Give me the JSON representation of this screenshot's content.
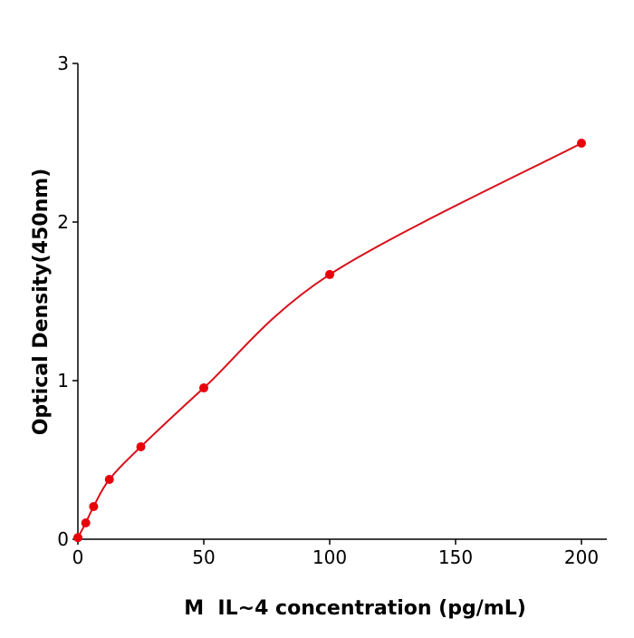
{
  "chart_data": {
    "type": "scatter",
    "title": "",
    "xlabel": "M  IL~4 concentration (pg/mL)",
    "ylabel": "Optical Density(450nm)",
    "xlim": [
      0,
      210
    ],
    "ylim": [
      0,
      3
    ],
    "xticks": [
      0,
      50,
      100,
      150,
      200
    ],
    "yticks": [
      0,
      1,
      2,
      3
    ],
    "grid": false,
    "series": [
      {
        "x": [
          0,
          3.125,
          6.25,
          12.5,
          25,
          50,
          100,
          200
        ],
        "y": [
          0.01,
          0.103,
          0.206,
          0.377,
          0.583,
          0.954,
          1.669,
          2.497
        ],
        "color": "#e8000b",
        "fit_line": true
      }
    ]
  }
}
